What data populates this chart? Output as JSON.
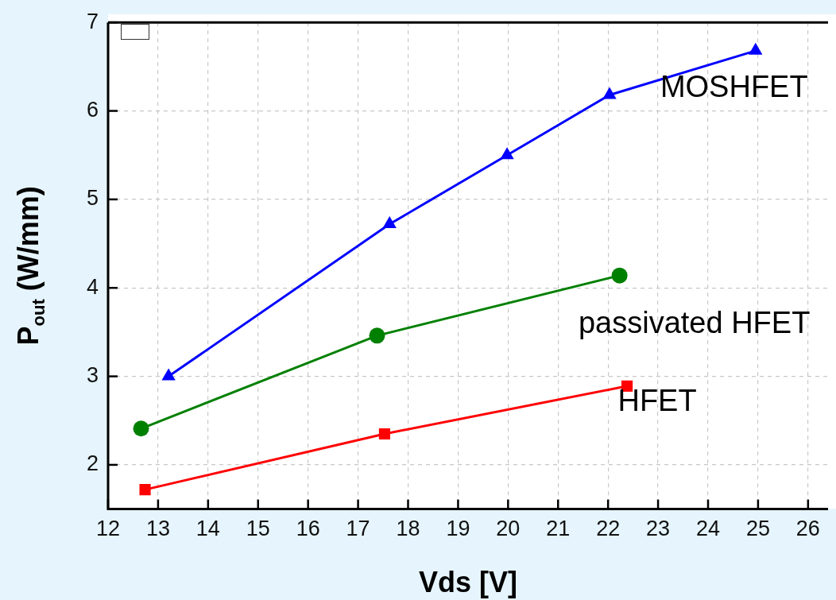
{
  "chart_data": {
    "type": "line",
    "xlabel": "Vds [V]",
    "ylabel": "P$_{out}$ (W/mm)",
    "xlim": [
      12,
      26.4
    ],
    "ylim": [
      1.5,
      7
    ],
    "xticks": [
      12,
      13,
      14,
      15,
      16,
      17,
      18,
      19,
      20,
      21,
      22,
      23,
      24,
      25,
      26
    ],
    "yticks": [
      2,
      3,
      4,
      5,
      6,
      7
    ],
    "grid": true,
    "line_style": "solid",
    "series": [
      {
        "name": "MOSHFET",
        "color": "#0000ff",
        "marker": "triangle",
        "x": [
          13.21,
          17.63,
          19.98,
          22.03,
          24.95
        ],
        "values": [
          3.0,
          4.72,
          5.5,
          6.18,
          6.68
        ]
      },
      {
        "name": "passivated HFET",
        "color": "#008000",
        "marker": "circle",
        "x": [
          12.66,
          17.38,
          22.23
        ],
        "values": [
          2.41,
          3.46,
          4.14
        ]
      },
      {
        "name": "HFET",
        "color": "#ff0000",
        "marker": "square",
        "x": [
          12.74,
          17.53,
          22.38
        ],
        "values": [
          1.72,
          2.35,
          2.89
        ]
      }
    ]
  }
}
